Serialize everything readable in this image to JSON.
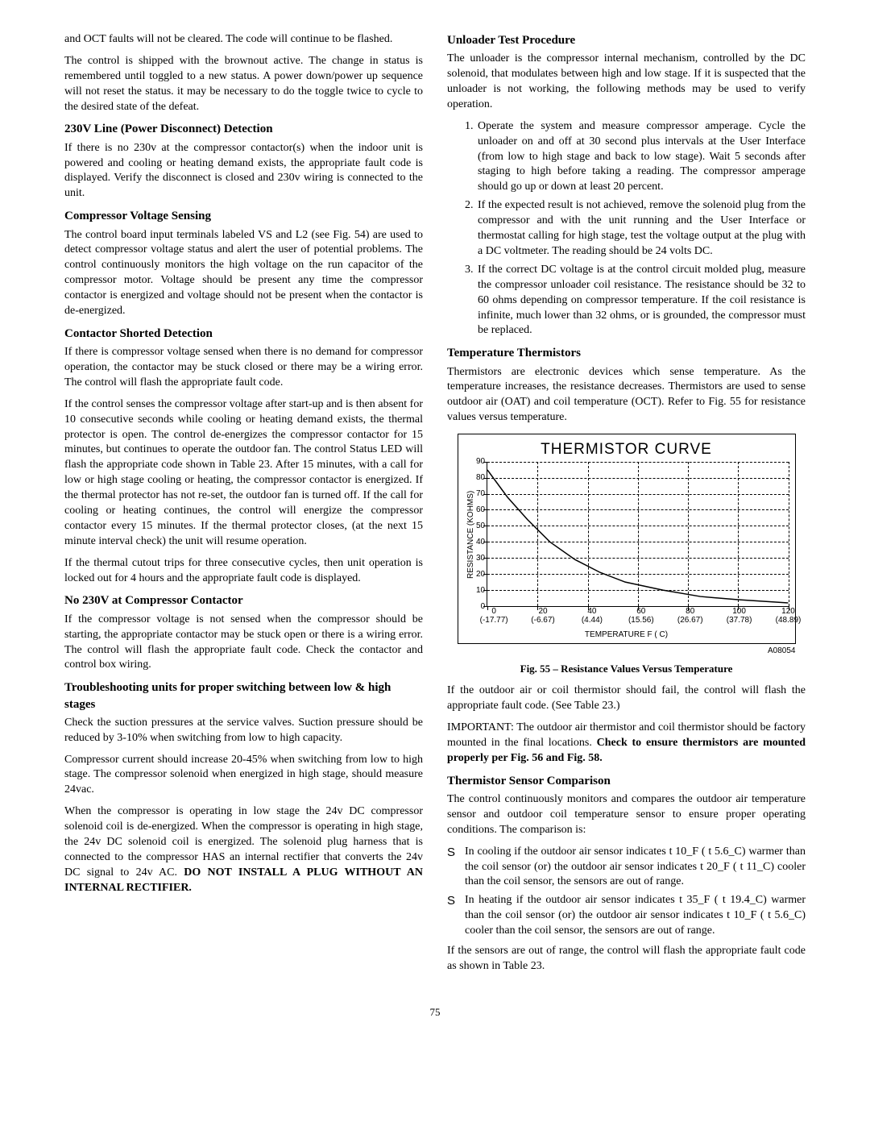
{
  "left": {
    "p1": "and OCT faults will not be cleared.  The code will continue to be flashed.",
    "p2": "The control is shipped with the brownout active.  The change in status is remembered until toggled to a new status.  A power down/power up sequence will not reset the status.  it may be necessary to do the toggle twice to cycle to the desired state of the defeat.",
    "h1": "230V Line (Power Disconnect) Detection",
    "p3": "If there is no 230v at the compressor contactor(s) when the indoor unit is powered and cooling or heating demand exists, the appropriate fault code is displayed. Verify the disconnect is closed and 230v wiring is connected to the unit.",
    "h2": "Compressor Voltage Sensing",
    "p4": "The control board input terminals labeled VS and L2 (see Fig. 54) are used to detect compressor voltage status and alert the user of potential problems. The control continuously monitors the high voltage on the run capacitor of the compressor motor. Voltage should be present any time the compressor contactor is energized and voltage should not be present when the contactor is de-energized.",
    "h3": "Contactor Shorted Detection",
    "p5": "If there is compressor voltage sensed when there is no demand for compressor operation, the contactor may be stuck closed or there may be a wiring error. The control will flash the appropriate fault code.",
    "p6": "If the control senses the compressor voltage after start-up and is then absent for 10 consecutive seconds while cooling or heating demand exists, the thermal protector is open.  The control de-energizes the compressor contactor for 15 minutes, but continues to operate the outdoor fan.  The control Status LED will flash the appropriate code shown in Table 23.  After 15 minutes, with a call for low or high stage cooling or heating, the compressor contactor is energized.  If the thermal protector has not re-set, the outdoor fan is turned off.  If the call for cooling or heating continues, the control will energize the compressor contactor every 15 minutes.  If the thermal protector closes, (at the next 15 minute interval check) the unit will resume operation.",
    "p7": "If the thermal cutout trips for three consecutive cycles, then unit operation is locked out for 4 hours and the appropriate fault code is displayed.",
    "h4": "No 230V at Compressor Contactor",
    "p8": "If the compressor voltage is not sensed when the compressor should be starting, the appropriate contactor may be stuck open or there is a wiring error.  The control will flash the appropriate fault code.  Check the contactor and control box wiring.",
    "h5": "Troubleshooting units for proper switching between low & high stages",
    "p9": "Check the suction pressures at the service valves.  Suction pressure should be reduced by 3-10% when switching from low to high capacity.",
    "p10": "Compressor current should increase 20-45% when switching from low to high stage.  The compressor solenoid when energized in high stage, should measure 24vac.",
    "p11a": "When the compressor is operating in low stage the 24v DC compressor solenoid coil is de-energized.  When the compressor is operating in high stage, the 24v DC solenoid coil is energized.  The solenoid plug harness that is connected to the compressor HAS an internal rectifier that converts the 24v DC signal to 24v AC.  ",
    "p11b": "DO NOT INSTALL A PLUG WITHOUT AN INTERNAL RECTIFIER."
  },
  "right": {
    "h1": "Unloader Test Procedure",
    "p1": "The unloader is the compressor internal mechanism, controlled by the DC solenoid, that modulates between high and low stage.  If it is suspected that the unloader is not working, the following methods may be used to verify operation.",
    "ol": [
      "Operate the system and measure compressor amperage.  Cycle the unloader on and off at 30 second plus intervals at the User Interface (from low to high stage and back to low stage).  Wait 5 seconds after staging to high before taking a reading.  The compressor amperage should go up or down at least 20 percent.",
      "If  the expected result is not achieved, remove the solenoid plug from the compressor and with the unit running and the User Interface or thermostat calling for high stage, test the voltage output at the plug with a DC voltmeter.  The reading should be 24 volts DC.",
      "If the correct DC voltage is at the control circuit molded plug, measure the compressor unloader coil resistance.  The resistance should be 32 to 60 ohms depending on compressor temperature.  If the coil resistance is infinite, much lower than 32 ohms, or is grounded, the compressor must be replaced."
    ],
    "h2": "Temperature Thermistors",
    "p2": "Thermistors are electronic devices which sense temperature.  As the temperature increases, the resistance decreases.  Thermistors are used to sense outdoor air (OAT) and coil temperature (OCT).  Refer to Fig. 55 for resistance values versus temperature.",
    "chart": {
      "title": "THERMISTOR CURVE",
      "ylabel": "RESISTANCE (KOHMS)",
      "xlabel": "TEMPERATURE  F ( C)",
      "code": "A08054",
      "ylim": [
        0,
        90
      ],
      "ytick_step": 10,
      "yticks": [
        90,
        80,
        70,
        60,
        50,
        40,
        30,
        20,
        10,
        0
      ],
      "xlim": [
        0,
        120
      ],
      "xticks": [
        {
          "v": 0,
          "f": "0",
          "c": "(-17.77)"
        },
        {
          "v": 20,
          "f": "20",
          "c": "(-6.67)"
        },
        {
          "v": 40,
          "f": "40",
          "c": "(4.44)"
        },
        {
          "v": 60,
          "f": "60",
          "c": "(15.56)"
        },
        {
          "v": 80,
          "f": "80",
          "c": "(26.67)"
        },
        {
          "v": 100,
          "f": "100",
          "c": "(37.78)"
        },
        {
          "v": 120,
          "f": "120",
          "c": "(48.89)"
        }
      ],
      "curve": [
        {
          "x": 0,
          "y": 85
        },
        {
          "x": 8,
          "y": 68
        },
        {
          "x": 16,
          "y": 54
        },
        {
          "x": 25,
          "y": 40
        },
        {
          "x": 35,
          "y": 29
        },
        {
          "x": 45,
          "y": 21
        },
        {
          "x": 55,
          "y": 15
        },
        {
          "x": 70,
          "y": 10
        },
        {
          "x": 85,
          "y": 6
        },
        {
          "x": 100,
          "y": 4
        },
        {
          "x": 120,
          "y": 2
        }
      ],
      "line_color": "#000000",
      "line_width": 1.5,
      "grid_color": "#000000",
      "background_color": "#ffffff"
    },
    "fig_caption": "Fig. 55 – Resistance Values Versus Temperature",
    "p3": "If the outdoor air or coil thermistor should fail, the control will flash the appropriate fault code. (See Table 23.)",
    "p4a": "IMPORTANT: The outdoor air thermistor and coil thermistor should be factory mounted in the final locations.  ",
    "p4b": "Check to ensure thermistors are mounted properly per Fig. 56 and Fig. 58.",
    "h3": "Thermistor Sensor Comparison",
    "p5": "The control continuously monitors and compares the outdoor air temperature sensor and outdoor coil temperature sensor to ensure proper operating conditions.  The comparison is:",
    "bullets": [
      "In cooling if the outdoor air sensor indicates  t 10_F ( t 5.6_C) warmer than the coil sensor (or) the outdoor air sensor indicates  t 20_F ( t 11_C) cooler than the coil sensor, the sensors are out of range.",
      "In heating if the outdoor air sensor indicates  t 35_F ( t 19.4_C) warmer than the coil sensor (or) the outdoor air sensor indicates t 10_F ( t 5.6_C) cooler than the coil sensor, the sensors are out of range."
    ],
    "p6": "If the sensors are out of range, the control will flash the appropriate fault code as shown in Table 23."
  },
  "page_number": "75"
}
